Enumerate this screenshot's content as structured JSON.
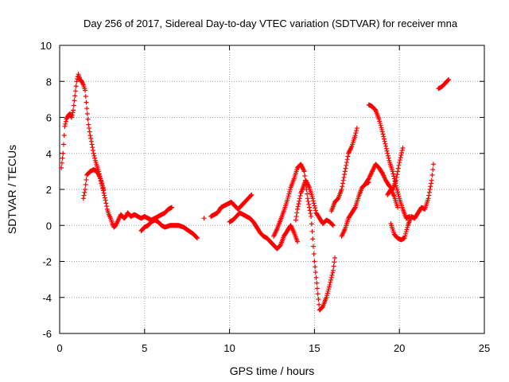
{
  "chart_data": {
    "type": "scatter",
    "title": "Day 256 of 2017, Sidereal Day-to-day VTEC variation (SDTVAR) for receiver mna",
    "xlabel": "GPS time / hours",
    "ylabel": "SDTVAR / TECUs",
    "xlim": [
      0,
      25
    ],
    "ylim": [
      -6,
      10
    ],
    "xticks": [
      "0",
      "5",
      "10",
      "15",
      "20",
      "25"
    ],
    "yticks": [
      "-6",
      "-4",
      "-2",
      "0",
      "2",
      "4",
      "6",
      "8",
      "10"
    ],
    "grid": true,
    "marker": "+",
    "color": "#ff0000",
    "series": [
      {
        "segments": [
          [
            [
              0.1,
              3.2
            ],
            [
              0.2,
              4.0
            ],
            [
              0.3,
              5.5
            ],
            [
              0.4,
              5.9
            ],
            [
              0.5,
              6.1
            ],
            [
              0.6,
              6.2
            ],
            [
              0.7,
              6.0
            ],
            [
              0.8,
              6.4
            ],
            [
              0.9,
              7.2
            ],
            [
              1.0,
              8.0
            ],
            [
              1.1,
              8.4
            ],
            [
              1.2,
              8.1
            ],
            [
              1.3,
              8.0
            ],
            [
              1.4,
              7.8
            ],
            [
              1.5,
              7.5
            ],
            [
              1.6,
              6.5
            ],
            [
              1.7,
              5.6
            ],
            [
              1.8,
              5.0
            ],
            [
              1.9,
              4.5
            ],
            [
              2.0,
              4.0
            ],
            [
              2.1,
              3.6
            ],
            [
              2.2,
              3.3
            ],
            [
              2.3,
              3.0
            ],
            [
              2.4,
              2.6
            ],
            [
              2.5,
              2.2
            ],
            [
              2.6,
              1.8
            ],
            [
              2.7,
              1.4
            ],
            [
              2.8,
              0.9
            ],
            [
              2.9,
              0.6
            ],
            [
              3.0,
              0.4
            ],
            [
              3.1,
              0.1
            ],
            [
              3.2,
              -0.1
            ],
            [
              3.3,
              0.0
            ],
            [
              3.4,
              0.2
            ],
            [
              3.5,
              0.4
            ],
            [
              3.6,
              0.6
            ],
            [
              3.7,
              0.5
            ],
            [
              3.8,
              0.4
            ],
            [
              3.9,
              0.5
            ],
            [
              4.0,
              0.7
            ],
            [
              4.1,
              0.6
            ],
            [
              4.2,
              0.5
            ],
            [
              4.4,
              0.6
            ],
            [
              4.6,
              0.5
            ],
            [
              4.8,
              0.4
            ],
            [
              5.0,
              0.5
            ],
            [
              5.2,
              0.4
            ],
            [
              5.4,
              0.3
            ],
            [
              5.6,
              0.4
            ],
            [
              5.8,
              0.5
            ],
            [
              6.0,
              0.6
            ],
            [
              6.2,
              0.7
            ],
            [
              6.4,
              0.9
            ],
            [
              6.6,
              1.0
            ]
          ],
          [
            [
              1.4,
              1.5
            ],
            [
              1.5,
              2.0
            ],
            [
              1.6,
              2.8
            ],
            [
              1.8,
              3.0
            ],
            [
              2.0,
              3.1
            ],
            [
              2.2,
              3.0
            ],
            [
              2.4,
              2.6
            ],
            [
              2.6,
              2.0
            ]
          ],
          [
            [
              4.8,
              -0.3
            ],
            [
              5.0,
              -0.1
            ],
            [
              5.2,
              0.0
            ],
            [
              5.4,
              0.2
            ],
            [
              5.6,
              0.3
            ],
            [
              5.8,
              0.2
            ],
            [
              6.0,
              0.0
            ],
            [
              6.2,
              -0.1
            ],
            [
              6.5,
              0.0
            ],
            [
              7.0,
              0.0
            ],
            [
              7.3,
              -0.1
            ],
            [
              7.6,
              -0.3
            ],
            [
              7.9,
              -0.5
            ],
            [
              8.1,
              -0.7
            ]
          ],
          [
            [
              8.5,
              0.4
            ]
          ],
          [
            [
              8.9,
              0.5
            ],
            [
              9.1,
              0.6
            ],
            [
              9.3,
              0.7
            ],
            [
              9.5,
              1.0
            ],
            [
              9.7,
              1.1
            ],
            [
              9.9,
              1.2
            ],
            [
              10.1,
              1.3
            ],
            [
              10.3,
              1.1
            ],
            [
              10.5,
              0.9
            ],
            [
              10.7,
              1.1
            ],
            [
              10.9,
              1.3
            ],
            [
              11.1,
              1.5
            ],
            [
              11.3,
              1.7
            ]
          ],
          [
            [
              10.0,
              0.2
            ],
            [
              10.2,
              0.3
            ],
            [
              10.4,
              0.5
            ],
            [
              10.6,
              0.7
            ],
            [
              10.8,
              0.6
            ],
            [
              11.0,
              0.5
            ],
            [
              11.2,
              0.4
            ],
            [
              11.4,
              0.2
            ],
            [
              11.6,
              -0.1
            ],
            [
              11.8,
              -0.4
            ],
            [
              12.0,
              -0.6
            ],
            [
              12.2,
              -0.7
            ],
            [
              12.4,
              -0.9
            ],
            [
              12.6,
              -1.1
            ],
            [
              12.8,
              -1.3
            ],
            [
              13.0,
              -1.1
            ],
            [
              13.2,
              -0.6
            ],
            [
              13.4,
              -0.3
            ],
            [
              13.6,
              0.0
            ],
            [
              13.8,
              -0.4
            ],
            [
              14.0,
              -0.9
            ]
          ],
          [
            [
              12.6,
              -0.6
            ],
            [
              12.8,
              -0.2
            ],
            [
              13.0,
              0.3
            ],
            [
              13.2,
              0.8
            ],
            [
              13.4,
              1.4
            ],
            [
              13.6,
              2.1
            ],
            [
              13.8,
              2.6
            ],
            [
              14.0,
              3.2
            ],
            [
              14.2,
              3.4
            ],
            [
              14.4,
              3.0
            ],
            [
              14.6,
              1.5
            ],
            [
              14.8,
              0.5
            ],
            [
              15.0,
              -2.0
            ],
            [
              15.2,
              -3.8
            ],
            [
              15.3,
              -4.7
            ],
            [
              15.5,
              -4.5
            ],
            [
              15.7,
              -4.0
            ],
            [
              15.9,
              -3.3
            ],
            [
              16.1,
              -2.5
            ],
            [
              16.2,
              -1.8
            ]
          ],
          [
            [
              13.9,
              0.3
            ],
            [
              14.0,
              0.9
            ],
            [
              14.2,
              1.8
            ],
            [
              14.4,
              2.3
            ],
            [
              14.5,
              2.5
            ],
            [
              14.7,
              2.1
            ],
            [
              14.9,
              1.5
            ],
            [
              15.1,
              0.7
            ],
            [
              15.3,
              0.4
            ],
            [
              15.5,
              0.1
            ],
            [
              15.7,
              0.3
            ],
            [
              15.9,
              0.2
            ],
            [
              16.1,
              0.0
            ]
          ],
          [
            [
              16.0,
              0.8
            ],
            [
              16.2,
              1.3
            ],
            [
              16.4,
              1.5
            ],
            [
              16.6,
              2.0
            ],
            [
              16.8,
              3.0
            ],
            [
              17.0,
              4.0
            ],
            [
              17.2,
              4.4
            ],
            [
              17.4,
              5.0
            ],
            [
              17.5,
              5.4
            ]
          ],
          [
            [
              16.6,
              -0.6
            ],
            [
              16.8,
              -0.2
            ],
            [
              17.0,
              0.4
            ],
            [
              17.2,
              0.7
            ],
            [
              17.4,
              1.0
            ],
            [
              17.6,
              1.6
            ],
            [
              17.8,
              2.1
            ],
            [
              18.0,
              2.3
            ],
            [
              18.2,
              2.4
            ]
          ],
          [
            [
              18.2,
              6.7
            ],
            [
              18.4,
              6.6
            ],
            [
              18.6,
              6.4
            ],
            [
              18.8,
              5.9
            ],
            [
              19.0,
              5.2
            ],
            [
              19.2,
              4.4
            ],
            [
              19.4,
              3.6
            ],
            [
              19.6,
              3.0
            ],
            [
              19.8,
              2.2
            ],
            [
              20.0,
              1.5
            ],
            [
              20.2,
              0.9
            ],
            [
              20.4,
              0.4
            ],
            [
              20.6,
              0.5
            ]
          ],
          [
            [
              18.0,
              2.3
            ],
            [
              18.2,
              2.6
            ],
            [
              18.4,
              3.0
            ],
            [
              18.6,
              3.4
            ],
            [
              18.8,
              3.2
            ],
            [
              19.0,
              2.9
            ],
            [
              19.2,
              2.5
            ],
            [
              19.4,
              2.2
            ],
            [
              19.6,
              2.0
            ],
            [
              19.8,
              2.5
            ],
            [
              20.0,
              3.5
            ],
            [
              20.2,
              4.3
            ]
          ],
          [
            [
              19.3,
              1.7
            ],
            [
              19.5,
              2.0
            ],
            [
              19.7,
              1.6
            ],
            [
              19.9,
              1.0
            ]
          ],
          [
            [
              19.5,
              0.1
            ],
            [
              19.7,
              -0.5
            ],
            [
              19.9,
              -0.7
            ],
            [
              20.1,
              -0.8
            ],
            [
              20.3,
              -0.7
            ],
            [
              20.5,
              0.0
            ],
            [
              20.7,
              0.5
            ],
            [
              20.9,
              0.4
            ],
            [
              21.1,
              0.7
            ],
            [
              21.3,
              1.0
            ],
            [
              21.5,
              0.9
            ],
            [
              21.7,
              1.5
            ],
            [
              21.9,
              2.5
            ],
            [
              22.0,
              3.4
            ]
          ],
          [
            [
              22.3,
              7.6
            ],
            [
              22.5,
              7.7
            ],
            [
              22.7,
              7.9
            ],
            [
              22.9,
              8.1
            ]
          ]
        ]
      }
    ]
  }
}
